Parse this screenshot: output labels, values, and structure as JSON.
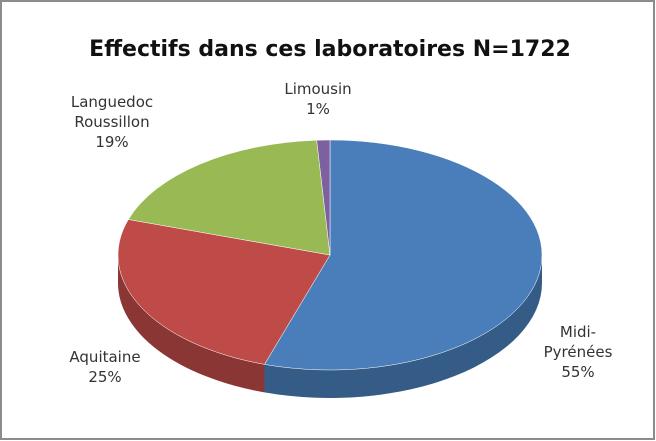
{
  "chart_data": {
    "type": "pie3d",
    "title": "Effectifs dans ces laboratoires N=1722",
    "categories": [
      "Midi-Pyrénées",
      "Aquitaine",
      "Languedoc Roussillon",
      "Limousin"
    ],
    "values": [
      55,
      25,
      19,
      1
    ],
    "value_labels": [
      "55%",
      "25%",
      "19%",
      "1%"
    ],
    "colors": [
      "#4a7ebb",
      "#be4b48",
      "#98b954",
      "#7d60a0"
    ]
  }
}
